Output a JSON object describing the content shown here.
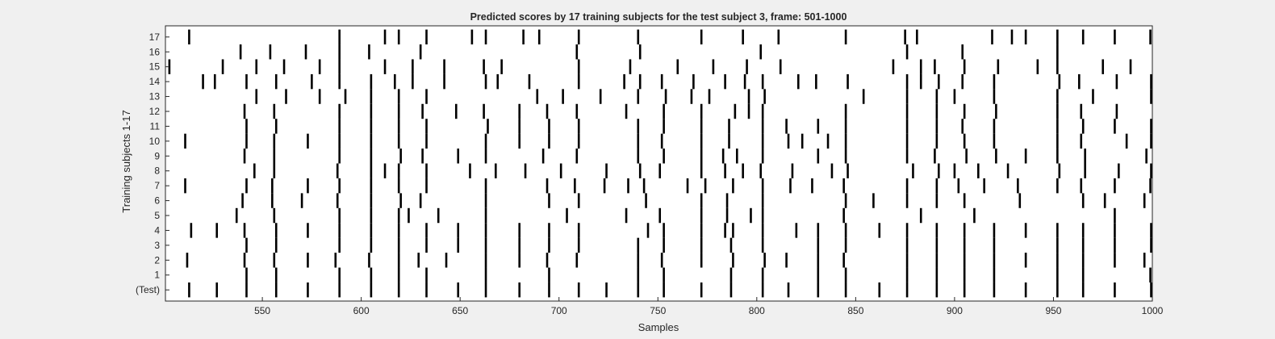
{
  "chart_data": {
    "type": "raster",
    "title": "Predicted scores by 17 training subjects for the test subject 3, frame: 501-1000",
    "xlabel": "Samples",
    "ylabel": "Training subjects 1-17",
    "xlim": [
      501,
      1000
    ],
    "xticks": [
      550,
      600,
      650,
      700,
      750,
      800,
      850,
      900,
      950,
      1000
    ],
    "rows": [
      "(Test)",
      "1",
      "2",
      "3",
      "4",
      "5",
      "6",
      "7",
      "8",
      "9",
      "10",
      "11",
      "12",
      "13",
      "14",
      "15",
      "16",
      "17"
    ],
    "mark_color": "#000000",
    "series": [
      {
        "name": "(Test)",
        "x": [
          513,
          527,
          542,
          557,
          573,
          589,
          605,
          619,
          633,
          649,
          663,
          680,
          695,
          710,
          724,
          740,
          753,
          772,
          787,
          803,
          816,
          831,
          845,
          862,
          876,
          891,
          905,
          920,
          936,
          952,
          965,
          981,
          1000
        ]
      },
      {
        "name": "1",
        "x": [
          542,
          557,
          589,
          605,
          619,
          633,
          663,
          695,
          740,
          753,
          787,
          803,
          831,
          845,
          876,
          891,
          905,
          920,
          952,
          965,
          999
        ]
      },
      {
        "name": "2",
        "x": [
          512,
          541,
          556,
          573,
          587,
          604,
          619,
          629,
          643,
          663,
          680,
          694,
          709,
          740,
          752,
          772,
          788,
          804,
          815,
          831,
          844,
          876,
          891,
          905,
          920,
          936,
          952,
          965,
          981,
          996
        ]
      },
      {
        "name": "3",
        "x": [
          542,
          557,
          589,
          605,
          619,
          633,
          649,
          663,
          680,
          695,
          710,
          740,
          753,
          772,
          787,
          803,
          831,
          845,
          876,
          891,
          905,
          920,
          952,
          965,
          981,
          1000
        ]
      },
      {
        "name": "4",
        "x": [
          514,
          527,
          541,
          557,
          573,
          589,
          605,
          619,
          633,
          649,
          663,
          680,
          695,
          710,
          745,
          753,
          772,
          784,
          788,
          803,
          820,
          831,
          845,
          862,
          876,
          891,
          905,
          920,
          936,
          952,
          965,
          981,
          1000
        ]
      },
      {
        "name": "5",
        "x": [
          537,
          556,
          589,
          605,
          619,
          624,
          639,
          663,
          704,
          734,
          751,
          772,
          785,
          797,
          803,
          844,
          883,
          910,
          981
        ]
      },
      {
        "name": "6",
        "x": [
          540,
          555,
          570,
          588,
          605,
          620,
          630,
          663,
          695,
          710,
          744,
          772,
          785,
          803,
          845,
          859,
          876,
          891,
          905,
          933,
          965,
          976,
          996
        ]
      },
      {
        "name": "7",
        "x": [
          511,
          542,
          555,
          573,
          589,
          605,
          619,
          633,
          663,
          694,
          708,
          723,
          735,
          743,
          765,
          774,
          788,
          803,
          817,
          828,
          844,
          876,
          891,
          902,
          915,
          932,
          952,
          964,
          981,
          999
        ]
      },
      {
        "name": "8",
        "x": [
          546,
          556,
          588,
          605,
          612,
          619,
          633,
          655,
          668,
          683,
          701,
          724,
          741,
          751,
          772,
          784,
          793,
          802,
          818,
          838,
          846,
          879,
          892,
          900,
          912,
          927,
          953,
          966,
          983,
          1001
        ]
      },
      {
        "name": "9",
        "x": [
          541,
          556,
          589,
          605,
          620,
          631,
          649,
          663,
          692,
          709,
          740,
          753,
          772,
          783,
          790,
          803,
          831,
          845,
          876,
          890,
          906,
          921,
          936,
          952,
          966,
          997
        ]
      },
      {
        "name": "10",
        "x": [
          511,
          542,
          556,
          573,
          589,
          605,
          619,
          633,
          663,
          680,
          695,
          710,
          740,
          752,
          772,
          786,
          803,
          816,
          823,
          836,
          845,
          876,
          891,
          905,
          920,
          952,
          964,
          987,
          1000
        ]
      },
      {
        "name": "11",
        "x": [
          542,
          557,
          589,
          605,
          619,
          633,
          664,
          680,
          695,
          710,
          740,
          753,
          772,
          786,
          803,
          815,
          831,
          845,
          876,
          891,
          904,
          920,
          952,
          965,
          981,
          1000
        ]
      },
      {
        "name": "12",
        "x": [
          541,
          556,
          589,
          605,
          619,
          631,
          648,
          662,
          680,
          694,
          709,
          734,
          753,
          772,
          789,
          796,
          803,
          845,
          876,
          891,
          905,
          921,
          952,
          964,
          982
        ]
      },
      {
        "name": "13",
        "x": [
          547,
          562,
          579,
          592,
          605,
          619,
          633,
          689,
          702,
          721,
          740,
          754,
          767,
          776,
          796,
          804,
          854,
          876,
          891,
          900,
          920,
          952,
          970,
          1001
        ]
      },
      {
        "name": "14",
        "x": [
          520,
          526,
          542,
          557,
          575,
          589,
          605,
          617,
          626,
          642,
          663,
          669,
          685,
          710,
          733,
          741,
          752,
          768,
          784,
          794,
          803,
          821,
          830,
          846,
          876,
          883,
          892,
          904,
          920,
          953,
          963,
          982,
          1001
        ]
      },
      {
        "name": "15",
        "x": [
          503,
          530,
          547,
          561,
          579,
          589,
          612,
          626,
          642,
          662,
          671,
          710,
          736,
          760,
          778,
          795,
          812,
          869,
          883,
          890,
          905,
          922,
          942,
          952,
          975,
          989
        ]
      },
      {
        "name": "16",
        "x": [
          539,
          554,
          572,
          589,
          604,
          630,
          709,
          741,
          802,
          876,
          904,
          952
        ]
      },
      {
        "name": "17",
        "x": [
          513,
          589,
          612,
          619,
          633,
          656,
          663,
          682,
          690,
          710,
          740,
          772,
          793,
          811,
          845,
          875,
          881,
          919,
          929,
          936,
          952,
          965,
          981,
          999
        ]
      }
    ]
  }
}
